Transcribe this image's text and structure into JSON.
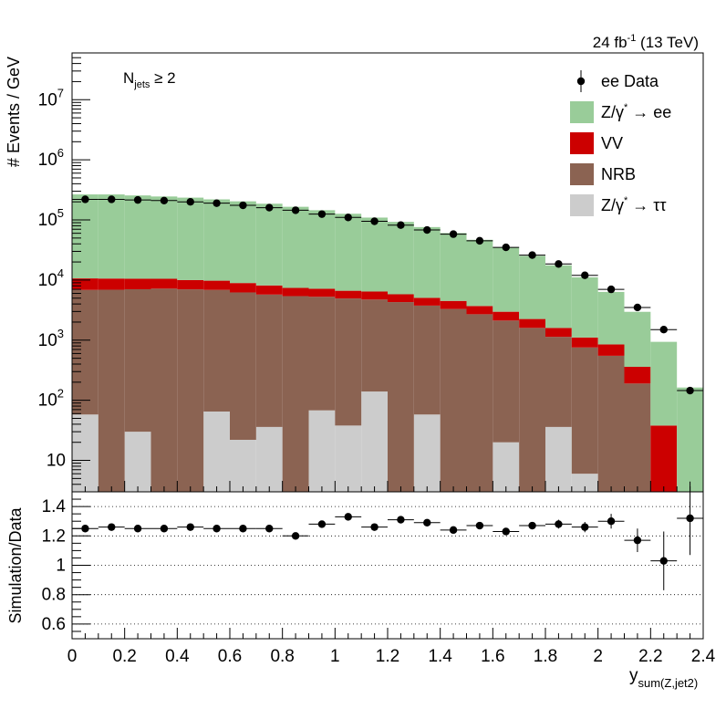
{
  "chart_data": {
    "type": "bar",
    "stacked": true,
    "log_scale_y": true,
    "lumi_label": "24 fb",
    "lumi_exp": "-1",
    "lumi_energy": " (13 TeV)",
    "selection_label": {
      "base": "N",
      "sub": "jets",
      "rest": " ≥ 2"
    },
    "ylabel": "# Events / GeV",
    "ratio_ylabel": "Simulation/Data",
    "xlabel": {
      "base": "y",
      "sub": "sum(Z,jet2)"
    },
    "xlim": [
      0,
      2.4
    ],
    "ylim": [
      3,
      60000000
    ],
    "ratio_ylim": [
      0.5,
      1.5
    ],
    "x_ticks": [
      {
        "v": 0,
        "label": "0"
      },
      {
        "v": 0.2,
        "label": "0.2"
      },
      {
        "v": 0.4,
        "label": "0.4"
      },
      {
        "v": 0.6,
        "label": "0.6"
      },
      {
        "v": 0.8,
        "label": "0.8"
      },
      {
        "v": 1.0,
        "label": "1"
      },
      {
        "v": 1.2,
        "label": "1.2"
      },
      {
        "v": 1.4,
        "label": "1.4"
      },
      {
        "v": 1.6,
        "label": "1.6"
      },
      {
        "v": 1.8,
        "label": "1.8"
      },
      {
        "v": 2.0,
        "label": "2"
      },
      {
        "v": 2.2,
        "label": "2.2"
      },
      {
        "v": 2.4,
        "label": "2.4"
      }
    ],
    "y_ticks": [
      {
        "v": 10,
        "base": "10",
        "exp": ""
      },
      {
        "v": 100,
        "base": "10",
        "exp": "2"
      },
      {
        "v": 1000,
        "base": "10",
        "exp": "3"
      },
      {
        "v": 10000,
        "base": "10",
        "exp": "4"
      },
      {
        "v": 100000,
        "base": "10",
        "exp": "5"
      },
      {
        "v": 1000000,
        "base": "10",
        "exp": "6"
      },
      {
        "v": 10000000,
        "base": "10",
        "exp": "7"
      }
    ],
    "ratio_ticks": [
      {
        "v": 0.6,
        "label": "0.6"
      },
      {
        "v": 0.8,
        "label": "0.8"
      },
      {
        "v": 1.0,
        "label": "1"
      },
      {
        "v": 1.2,
        "label": "1.2"
      },
      {
        "v": 1.4,
        "label": "1.4"
      }
    ],
    "bin_edges": [
      0,
      0.1,
      0.2,
      0.3,
      0.4,
      0.5,
      0.6,
      0.7,
      0.8,
      0.9,
      1.0,
      1.1,
      1.2,
      1.3,
      1.4,
      1.5,
      1.6,
      1.7,
      1.8,
      1.9,
      2.0,
      2.1,
      2.2,
      2.3,
      2.4
    ],
    "series": [
      {
        "name": "Z/γ* → ττ",
        "color": "#cccccc",
        "values": [
          58,
          0,
          30,
          0,
          0,
          65,
          22,
          36,
          0,
          68,
          38,
          140,
          0,
          58,
          0,
          0,
          20,
          0,
          36,
          6,
          0,
          0,
          0,
          0
        ]
      },
      {
        "name": "NRB",
        "color": "#8b6352",
        "values": [
          6800,
          6900,
          7000,
          7200,
          7000,
          6800,
          6200,
          5700,
          5400,
          5200,
          4900,
          4600,
          4300,
          3700,
          3300,
          2700,
          2100,
          1600,
          1100,
          750,
          550,
          190,
          0,
          0
        ]
      },
      {
        "name": "VV",
        "color": "#cc0000",
        "values": [
          3800,
          3700,
          3500,
          3300,
          3000,
          2900,
          2700,
          2400,
          2000,
          1900,
          1700,
          1700,
          1500,
          1300,
          1200,
          1000,
          850,
          650,
          460,
          350,
          300,
          170,
          38,
          3
        ]
      },
      {
        "name": "Z/γ* → ee",
        "color": "#99cc99",
        "values": [
          255000,
          255000,
          245000,
          235000,
          225000,
          210000,
          195000,
          178000,
          158000,
          138000,
          120000,
          103000,
          87000,
          71000,
          56000,
          43000,
          32000,
          23000,
          16000,
          10000,
          5500,
          2600,
          900,
          160
        ]
      }
    ],
    "data_series": {
      "name": "ee Data",
      "values": [
        220000,
        220000,
        215000,
        210000,
        200000,
        190000,
        175000,
        160000,
        145000,
        125000,
        110000,
        95000,
        82000,
        68000,
        58000,
        45000,
        35000,
        26000,
        18500,
        12000,
        7000,
        3500,
        1500,
        145
      ]
    },
    "ratio": {
      "values": [
        1.25,
        1.26,
        1.25,
        1.25,
        1.26,
        1.25,
        1.25,
        1.25,
        1.2,
        1.28,
        1.33,
        1.26,
        1.31,
        1.29,
        1.24,
        1.27,
        1.23,
        1.27,
        1.28,
        1.26,
        1.3,
        1.17,
        1.03,
        1.32
      ],
      "errors": [
        0.01,
        0.01,
        0.01,
        0.01,
        0.01,
        0.01,
        0.01,
        0.01,
        0.01,
        0.01,
        0.01,
        0.01,
        0.015,
        0.015,
        0.015,
        0.02,
        0.02,
        0.025,
        0.03,
        0.035,
        0.05,
        0.08,
        0.2,
        0.25
      ]
    },
    "legend": [
      {
        "label": "ee Data",
        "type": "marker"
      },
      {
        "label": "Z/γ* → ee",
        "type": "box",
        "color": "#99cc99",
        "base": "Z/γ",
        "sup": "*",
        "rest": " → ee"
      },
      {
        "label": "VV",
        "type": "box",
        "color": "#cc0000",
        "base": "VV",
        "sup": "",
        "rest": ""
      },
      {
        "label": "NRB",
        "type": "box",
        "color": "#8b6352",
        "base": "NRB",
        "sup": "",
        "rest": ""
      },
      {
        "label": "Z/γ* → ττ",
        "type": "box",
        "color": "#cccccc",
        "base": "Z/γ",
        "sup": "*",
        "rest": " → ττ"
      }
    ],
    "legend_position": "top-right"
  }
}
